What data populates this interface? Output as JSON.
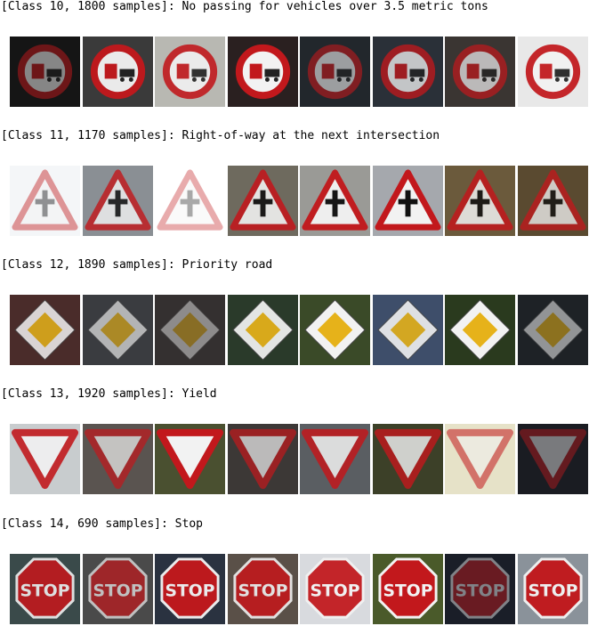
{
  "sections": [
    {
      "heading": "[Class 10, 1800 samples]: No passing for vehicles over 3.5 metric tons",
      "sign": "no-passing-trucks",
      "samples": [
        {
          "bg": "#151515",
          "tint": 0.35
        },
        {
          "bg": "#3a3a3a",
          "tint": 0.95
        },
        {
          "bg": "#b8b8b2",
          "tint": 0.85
        },
        {
          "bg": "#2a2020",
          "tint": 1.0
        },
        {
          "bg": "#22272c",
          "tint": 0.45
        },
        {
          "bg": "#2a3038",
          "tint": 0.7
        },
        {
          "bg": "#3a3532",
          "tint": 0.6
        },
        {
          "bg": "#e8e8e8",
          "tint": 0.9
        }
      ]
    },
    {
      "heading": "[Class 11, 1170 samples]: Right-of-way at the next intersection",
      "sign": "right-of-way",
      "samples": [
        {
          "bg": "#f4f6f8",
          "tint": 0.25
        },
        {
          "bg": "#8a8f94",
          "tint": 0.75
        },
        {
          "bg": "#ffffff",
          "tint": 0.15
        },
        {
          "bg": "#6e6a5e",
          "tint": 0.85
        },
        {
          "bg": "#9a9a96",
          "tint": 0.95
        },
        {
          "bg": "#a5a8ad",
          "tint": 1.0
        },
        {
          "bg": "#6b5a3c",
          "tint": 0.8
        },
        {
          "bg": "#5a4a30",
          "tint": 0.7
        }
      ]
    },
    {
      "heading": "[Class 12, 1890 samples]: Priority road",
      "sign": "priority-road",
      "samples": [
        {
          "bg": "#4a2c2a",
          "tint": 0.8
        },
        {
          "bg": "#3a3c40",
          "tint": 0.55
        },
        {
          "bg": "#343030",
          "tint": 0.3
        },
        {
          "bg": "#2a3a2a",
          "tint": 0.9
        },
        {
          "bg": "#3a4a28",
          "tint": 1.0
        },
        {
          "bg": "#3e4e6a",
          "tint": 0.85
        },
        {
          "bg": "#2a3a1e",
          "tint": 1.0
        },
        {
          "bg": "#1e2226",
          "tint": 0.4
        }
      ]
    },
    {
      "heading": "[Class 13, 1920 samples]: Yield",
      "sign": "yield",
      "samples": [
        {
          "bg": "#c8ccce",
          "tint": 0.85
        },
        {
          "bg": "#5a5450",
          "tint": 0.6
        },
        {
          "bg": "#4a5030",
          "tint": 1.0
        },
        {
          "bg": "#3c3836",
          "tint": 0.6
        },
        {
          "bg": "#5a5e62",
          "tint": 0.8
        },
        {
          "bg": "#3c4028",
          "tint": 0.75
        },
        {
          "bg": "#e6e2c8",
          "tint": 0.4
        },
        {
          "bg": "#1a1c22",
          "tint": 0.25
        }
      ]
    },
    {
      "heading": "[Class 14, 690 samples]: Stop",
      "sign": "stop",
      "samples": [
        {
          "bg": "#3a4a4a",
          "tint": 0.85
        },
        {
          "bg": "#4a4a4a",
          "tint": 0.6
        },
        {
          "bg": "#2a3240",
          "tint": 0.95
        },
        {
          "bg": "#5a5048",
          "tint": 0.85
        },
        {
          "bg": "#d8dade",
          "tint": 0.9
        },
        {
          "bg": "#4a5a2a",
          "tint": 1.0
        },
        {
          "bg": "#1a1e28",
          "tint": 0.3
        },
        {
          "bg": "#8a929a",
          "tint": 0.95
        }
      ]
    }
  ],
  "stop_text": "STOP"
}
